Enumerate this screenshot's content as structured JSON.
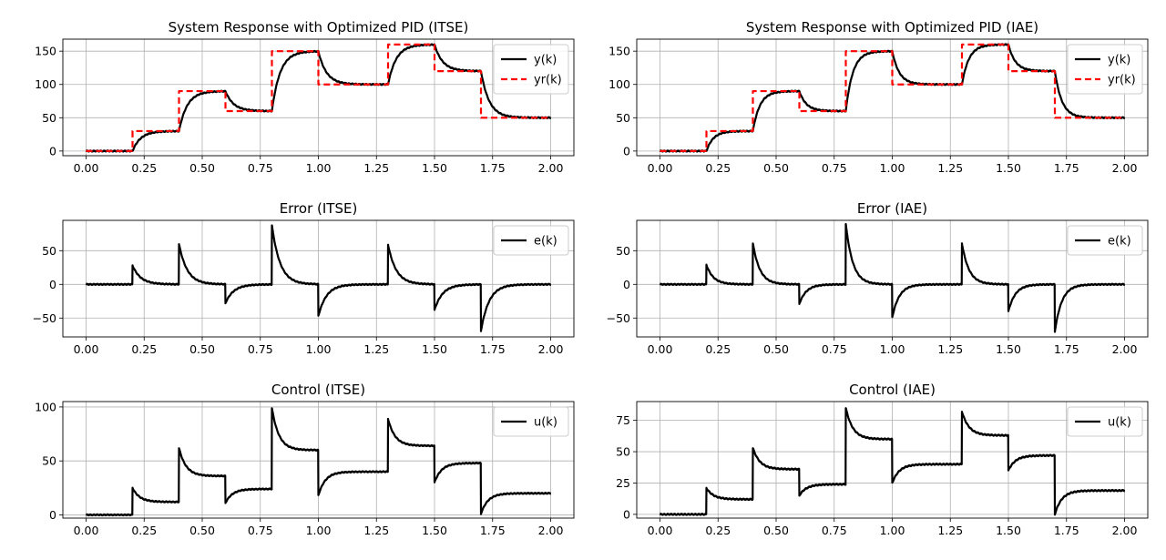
{
  "chart_data": [
    {
      "id": "itse-response",
      "type": "line",
      "title": "System Response with Optimized PID (ITSE)",
      "xlim": [
        -0.1,
        2.1
      ],
      "ylim": [
        -7,
        168
      ],
      "xticks": [
        "0.00",
        "0.25",
        "0.50",
        "0.75",
        "1.00",
        "1.25",
        "1.50",
        "1.75",
        "2.00"
      ],
      "yticks": [
        "0",
        "50",
        "100",
        "150"
      ],
      "grid": true,
      "legend_position": "top-right",
      "setpoints": [
        [
          0,
          0
        ],
        [
          0.2,
          30
        ],
        [
          0.4,
          90
        ],
        [
          0.6,
          60
        ],
        [
          0.8,
          150
        ],
        [
          1.0,
          100
        ],
        [
          1.3,
          160
        ],
        [
          1.5,
          120
        ],
        [
          1.7,
          50
        ],
        [
          2.0,
          50
        ]
      ],
      "tau": 0.035,
      "series": [
        {
          "name": "y(k)",
          "kind": "response",
          "color": "#000000",
          "dash": false
        },
        {
          "name": "yr(k)",
          "kind": "setpoint",
          "color": "#ff0000",
          "dash": true
        }
      ]
    },
    {
      "id": "iae-response",
      "type": "line",
      "title": "System Response with Optimized PID (IAE)",
      "xlim": [
        -0.1,
        2.1
      ],
      "ylim": [
        -7,
        168
      ],
      "xticks": [
        "0.00",
        "0.25",
        "0.50",
        "0.75",
        "1.00",
        "1.25",
        "1.50",
        "1.75",
        "2.00"
      ],
      "yticks": [
        "0",
        "50",
        "100",
        "150"
      ],
      "grid": true,
      "legend_position": "top-right",
      "setpoints": [
        [
          0,
          0
        ],
        [
          0.2,
          30
        ],
        [
          0.4,
          90
        ],
        [
          0.6,
          60
        ],
        [
          0.8,
          150
        ],
        [
          1.0,
          100
        ],
        [
          1.3,
          160
        ],
        [
          1.5,
          120
        ],
        [
          1.7,
          50
        ],
        [
          2.0,
          50
        ]
      ],
      "tau": 0.03,
      "series": [
        {
          "name": "y(k)",
          "kind": "response",
          "color": "#000000",
          "dash": false
        },
        {
          "name": "yr(k)",
          "kind": "setpoint",
          "color": "#ff0000",
          "dash": true
        }
      ]
    },
    {
      "id": "itse-error",
      "type": "line",
      "title": "Error (ITSE)",
      "xlim": [
        -0.1,
        2.1
      ],
      "ylim": [
        -78,
        95
      ],
      "xticks": [
        "0.00",
        "0.25",
        "0.50",
        "0.75",
        "1.00",
        "1.25",
        "1.50",
        "1.75",
        "2.00"
      ],
      "yticks": [
        "−50",
        "0",
        "50"
      ],
      "grid": true,
      "legend_position": "top-right",
      "setpoints": [
        [
          0,
          0
        ],
        [
          0.2,
          30
        ],
        [
          0.4,
          90
        ],
        [
          0.6,
          60
        ],
        [
          0.8,
          150
        ],
        [
          1.0,
          100
        ],
        [
          1.3,
          160
        ],
        [
          1.5,
          120
        ],
        [
          1.7,
          50
        ],
        [
          2.0,
          50
        ]
      ],
      "tau": 0.035,
      "peaks": [
        28,
        60,
        -28,
        88,
        -47,
        59,
        -38,
        -69
      ],
      "series": [
        {
          "name": "e(k)",
          "kind": "error",
          "color": "#000000",
          "dash": false
        }
      ]
    },
    {
      "id": "iae-error",
      "type": "line",
      "title": "Error (IAE)",
      "xlim": [
        -0.1,
        2.1
      ],
      "ylim": [
        -78,
        95
      ],
      "xticks": [
        "0.00",
        "0.25",
        "0.50",
        "0.75",
        "1.00",
        "1.25",
        "1.50",
        "1.75",
        "2.00"
      ],
      "yticks": [
        "−50",
        "0",
        "50"
      ],
      "grid": true,
      "legend_position": "top-right",
      "setpoints": [
        [
          0,
          0
        ],
        [
          0.2,
          30
        ],
        [
          0.4,
          90
        ],
        [
          0.6,
          60
        ],
        [
          0.8,
          150
        ],
        [
          1.0,
          100
        ],
        [
          1.3,
          160
        ],
        [
          1.5,
          120
        ],
        [
          1.7,
          50
        ],
        [
          2.0,
          50
        ]
      ],
      "tau": 0.03,
      "peaks": [
        29,
        61,
        -29,
        90,
        -49,
        61,
        -40,
        -70
      ],
      "series": [
        {
          "name": "e(k)",
          "kind": "error",
          "color": "#000000",
          "dash": false
        }
      ]
    },
    {
      "id": "itse-control",
      "type": "line",
      "title": "Control (ITSE)",
      "xlim": [
        -0.1,
        2.1
      ],
      "ylim": [
        -3,
        105
      ],
      "xticks": [
        "0.00",
        "0.25",
        "0.50",
        "0.75",
        "1.00",
        "1.25",
        "1.50",
        "1.75",
        "2.00"
      ],
      "yticks": [
        "0",
        "50",
        "100"
      ],
      "grid": true,
      "legend_position": "top-right",
      "segments": [
        {
          "t0": 0.0,
          "t1": 0.2,
          "start": 0,
          "end": 0
        },
        {
          "t0": 0.2,
          "t1": 0.4,
          "start": 25,
          "end": 12
        },
        {
          "t0": 0.4,
          "t1": 0.6,
          "start": 62,
          "end": 36
        },
        {
          "t0": 0.6,
          "t1": 0.8,
          "start": 11,
          "end": 24
        },
        {
          "t0": 0.8,
          "t1": 1.0,
          "start": 99,
          "end": 60
        },
        {
          "t0": 1.0,
          "t1": 1.3,
          "start": 18,
          "end": 40
        },
        {
          "t0": 1.3,
          "t1": 1.5,
          "start": 89,
          "end": 64
        },
        {
          "t0": 1.5,
          "t1": 1.7,
          "start": 30,
          "end": 48
        },
        {
          "t0": 1.7,
          "t1": 2.0,
          "start": 1,
          "end": 20
        }
      ],
      "tau": 0.03,
      "series": [
        {
          "name": "u(k)",
          "kind": "control",
          "color": "#000000",
          "dash": false
        }
      ]
    },
    {
      "id": "iae-control",
      "type": "line",
      "title": "Control (IAE)",
      "xlim": [
        -0.1,
        2.1
      ],
      "ylim": [
        -3,
        90
      ],
      "xticks": [
        "0.00",
        "0.25",
        "0.50",
        "0.75",
        "1.00",
        "1.25",
        "1.50",
        "1.75",
        "2.00"
      ],
      "yticks": [
        "0",
        "25",
        "50",
        "75"
      ],
      "grid": true,
      "legend_position": "top-right",
      "segments": [
        {
          "t0": 0.0,
          "t1": 0.2,
          "start": 0,
          "end": 0
        },
        {
          "t0": 0.2,
          "t1": 0.4,
          "start": 21,
          "end": 12
        },
        {
          "t0": 0.4,
          "t1": 0.6,
          "start": 53,
          "end": 36
        },
        {
          "t0": 0.6,
          "t1": 0.8,
          "start": 15,
          "end": 24
        },
        {
          "t0": 0.8,
          "t1": 1.0,
          "start": 85,
          "end": 60
        },
        {
          "t0": 1.0,
          "t1": 1.3,
          "start": 25,
          "end": 40
        },
        {
          "t0": 1.3,
          "t1": 1.5,
          "start": 82,
          "end": 63
        },
        {
          "t0": 1.5,
          "t1": 1.7,
          "start": 35,
          "end": 47
        },
        {
          "t0": 1.7,
          "t1": 2.0,
          "start": 0,
          "end": 19
        }
      ],
      "tau": 0.03,
      "series": [
        {
          "name": "u(k)",
          "kind": "control",
          "color": "#000000",
          "dash": false
        }
      ]
    }
  ]
}
